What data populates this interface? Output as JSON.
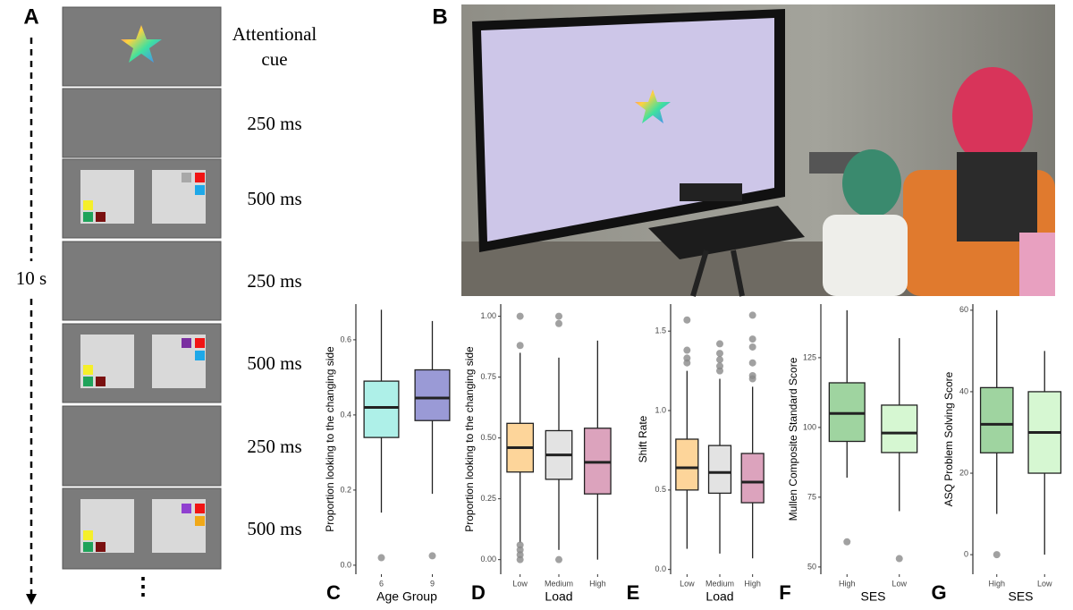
{
  "panel_a": {
    "letter": "A",
    "duration": "10 s",
    "ellipsis": "⋮",
    "steps": [
      "Attentional cue",
      "250 ms",
      "500 ms",
      "250 ms",
      "500 ms",
      "250 ms",
      "500 ms"
    ]
  },
  "panel_b": {
    "letter": "B"
  },
  "chart_data": [
    {
      "type": "box",
      "letter": "C",
      "ylabel": "Proportion looking to the changing side",
      "xlabel": "Age Group",
      "categories": [
        "6",
        "9"
      ],
      "ylim": [
        -0.024,
        0.695
      ],
      "yticks": [
        {
          "value": 0,
          "label": "0.0"
        },
        0.2,
        0.4,
        0.6
      ],
      "boxes": [
        {
          "color": "#aef0e8",
          "min": 0.14,
          "q1": 0.34,
          "median": 0.42,
          "q3": 0.49,
          "max": 0.68,
          "outliers": [
            0.02
          ]
        },
        {
          "color": "#9a9ad6",
          "min": 0.19,
          "q1": 0.385,
          "median": 0.445,
          "q3": 0.52,
          "max": 0.65,
          "outliers": [
            0.025
          ]
        }
      ]
    },
    {
      "type": "box",
      "letter": "D",
      "ylabel": "Proportion looking to the changing side",
      "xlabel": "Load",
      "categories": [
        "Low",
        "Medium",
        "High"
      ],
      "ylim": [
        -0.06,
        1.05
      ],
      "yticks": [
        {
          "value": 0,
          "label": "0.00"
        },
        0.25,
        {
          "value": 0.5,
          "label": "0.50"
        },
        0.75,
        {
          "value": 1,
          "label": "1.00"
        }
      ],
      "boxes": [
        {
          "color": "#fdd59a",
          "min": 0.07,
          "q1": 0.36,
          "median": 0.46,
          "q3": 0.56,
          "max": 0.85,
          "outliers": [
            0.88,
            1.0,
            0.06,
            0.04,
            0.02,
            0.0
          ]
        },
        {
          "color": "#e3e3e3",
          "min": 0.04,
          "q1": 0.33,
          "median": 0.43,
          "q3": 0.53,
          "max": 0.83,
          "outliers": [
            0.97,
            1.0,
            0.0
          ]
        },
        {
          "color": "#dca3bd",
          "min": 0.0,
          "q1": 0.27,
          "median": 0.4,
          "q3": 0.54,
          "max": 0.9,
          "outliers": []
        }
      ]
    },
    {
      "type": "box",
      "letter": "E",
      "ylabel": "Shift Rate",
      "xlabel": "Load",
      "categories": [
        "Low",
        "Medium",
        "High"
      ],
      "ylim": [
        -0.03,
        1.67
      ],
      "yticks": [
        {
          "value": 0,
          "label": "0.0"
        },
        0.5,
        {
          "value": 1,
          "label": "1.0"
        },
        1.5
      ],
      "boxes": [
        {
          "color": "#fdd59a",
          "min": 0.13,
          "q1": 0.5,
          "median": 0.64,
          "q3": 0.82,
          "max": 1.25,
          "outliers": [
            1.3,
            1.33,
            1.38,
            1.57
          ]
        },
        {
          "color": "#e3e3e3",
          "min": 0.1,
          "q1": 0.48,
          "median": 0.61,
          "q3": 0.78,
          "max": 1.2,
          "outliers": [
            1.25,
            1.28,
            1.32,
            1.36,
            1.42
          ]
        },
        {
          "color": "#dca3bd",
          "min": 0.07,
          "q1": 0.42,
          "median": 0.55,
          "q3": 0.73,
          "max": 1.15,
          "outliers": [
            1.2,
            1.22,
            1.3,
            1.4,
            1.45,
            1.6
          ]
        }
      ]
    },
    {
      "type": "box",
      "letter": "F",
      "ylabel": "Mullen Composite Standard Score",
      "xlabel": "SES",
      "categories": [
        "High",
        "Low"
      ],
      "ylim": [
        47.4,
        144.2
      ],
      "yticks": [
        50,
        75,
        100,
        125
      ],
      "boxes": [
        {
          "color": "#9fd4a0",
          "min": 82,
          "q1": 95,
          "median": 105,
          "q3": 116,
          "max": 142,
          "outliers": [
            59
          ]
        },
        {
          "color": "#d6f7d2",
          "min": 70,
          "q1": 91,
          "median": 98,
          "q3": 108,
          "max": 132,
          "outliers": [
            53
          ]
        }
      ]
    },
    {
      "type": "box",
      "letter": "G",
      "ylabel": "ASQ Problem Solving Score",
      "xlabel": "SES",
      "categories": [
        "High",
        "Low"
      ],
      "ylim": [
        -4.8,
        61.5
      ],
      "yticks": [
        0,
        20,
        40,
        60
      ],
      "boxes": [
        {
          "color": "#9fd4a0",
          "min": 10,
          "q1": 25,
          "median": 32,
          "q3": 41,
          "max": 60,
          "outliers": [
            0
          ]
        },
        {
          "color": "#d6f7d2",
          "min": 0,
          "q1": 20,
          "median": 30,
          "q3": 40,
          "max": 50,
          "outliers": []
        }
      ]
    }
  ]
}
